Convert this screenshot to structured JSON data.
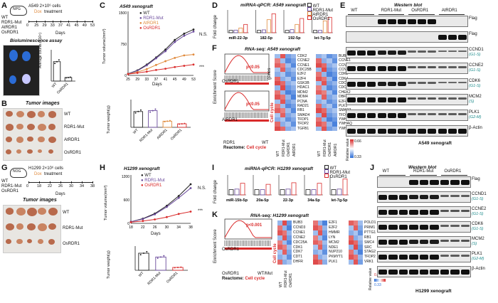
{
  "panels": {
    "A": {
      "letter": "A",
      "strain": "NPG",
      "cells": "A549 2×10⁶ cells",
      "dox": "Dox",
      "treatment": "treatment",
      "groups": [
        "WT",
        "RDR1-Mut",
        "AtRDR1",
        "OsRDR1"
      ],
      "days": [
        "0",
        "25",
        "29",
        "33",
        "37",
        "41",
        "45",
        "49",
        "53"
      ],
      "days_label": "Days",
      "bio_title": "Bioluminescence assay",
      "ylab": "Average counts (×10⁴)",
      "xlabels": [
        "WT",
        "OsRDR1"
      ],
      "sig": "*"
    },
    "B": {
      "letter": "B",
      "title": "Tumor images",
      "rows": [
        "WT",
        "RDR1-Mut",
        "AtRDR1",
        "OsRDR1"
      ]
    },
    "C": {
      "letter": "C",
      "title": "A549 xenograft",
      "ylab_top": "Tumor volume(mm³)",
      "ylab_bottom": "Tumor weight(g)",
      "xlab": "Days",
      "ns": "N.S.",
      "sig3": "***",
      "legend": [
        "WT",
        "RDR1-Mut",
        "AtRDR1",
        "OsRDR1"
      ],
      "bar_x": [
        "WT",
        "RDR1-Mut",
        "AtRDR1",
        "OsRDR1"
      ],
      "bar_sig": [
        "N.S.",
        "*",
        "***"
      ]
    },
    "D": {
      "letter": "D",
      "title": "miRNA-qPCR: A549 xenograft",
      "ylab": "Fold change",
      "mirs": [
        "miR-22-3p",
        "182-5p",
        "192-5p",
        "let-7g-5p"
      ],
      "legend": [
        "WT",
        "RDR1-Mut",
        "AtRDR1",
        "OsRDR1"
      ]
    },
    "E": {
      "letter": "E",
      "title": "Western blot",
      "cols": [
        "WT",
        "RDR1-Mut",
        "OsRDR1",
        "AtRDR1"
      ],
      "bands": [
        {
          "name": "Flag",
          "phase": ""
        },
        {
          "name": "Flag",
          "phase": ""
        },
        {
          "name": "CCND1",
          "phase": "(G1-S)"
        },
        {
          "name": "CCNE2",
          "phase": "(G1-S)"
        },
        {
          "name": "CDK6",
          "phase": "(G1-S)"
        },
        {
          "name": "MCM2",
          "phase": "(S)"
        },
        {
          "name": "PLK1",
          "phase": "(G2-M)"
        },
        {
          "name": "β-Actin",
          "phase": ""
        }
      ],
      "footer": "A549 xenograft"
    },
    "F": {
      "letter": "F",
      "title": "RNA-seq: A549 xenograft",
      "ylab": "Enrichment Score",
      "p1": "p<0.05",
      "p2": "p<0.05",
      "lbl1": "OsRDR1",
      "lbl2": "AtRDR1",
      "left": "RDR1",
      "right": "WT",
      "react": "Reactome:",
      "rtype": "Cell cycle",
      "genes": "genes",
      "cc": "Cell cycle",
      "col1": [
        "CDK2",
        "CCNE2",
        "CCNE1",
        "CDC25B",
        "E2F2",
        "E2F4",
        "GSK3B",
        "HDAC1",
        "MDM2",
        "MDM4",
        "PCNA",
        "RAD21",
        "RB1",
        "SMAD4",
        "TFDP1",
        "TFDP2",
        "TGFB1"
      ],
      "col2": [
        "BUB3",
        "CCNE1",
        "CCNE2",
        "CCNB1",
        "CDK2",
        "CDK4",
        "CDC6",
        "CDC7",
        "CHEK2",
        "DBF4",
        "E2F4",
        "PLK1",
        "SMAD2",
        "TFDP2",
        "YWHAB",
        "YWHAQ",
        "YWHAZ"
      ],
      "xl1": [
        "WT",
        "RDR1-Mut",
        "OsRDR1",
        "AtRDR1"
      ],
      "xl2": [
        "WT",
        "RDR1-Mut",
        "OsRDR1",
        "AtRDR1"
      ],
      "scale_hi": "0.66",
      "scale_lo": "0.33",
      "scale_lbl": "Relative value"
    },
    "G": {
      "letter": "G",
      "strain": "NOG",
      "cells": "H1299 2×10⁶ cells",
      "dox": "Dox",
      "treatment": "treatment",
      "groups": [
        "WT",
        "RDR1-Mut",
        "OsRDR1"
      ],
      "days": [
        "0",
        "18",
        "22",
        "26",
        "30",
        "34",
        "38"
      ],
      "days_label": "Days",
      "img_title": "Tumor images",
      "rows": [
        "WT",
        "RDR1-Mut",
        "OsRDR1"
      ]
    },
    "H": {
      "letter": "H",
      "title": "H1299 xenograft",
      "ylab_top": "Tumor volume(mm³)",
      "ylab_bottom": "Tumor weight(g)",
      "xlab": "Days",
      "ns": "N.S.",
      "sig3": "***",
      "legend": [
        "WT",
        "RDR1-Mut",
        "OsRDR1"
      ],
      "bar_x": [
        "WT",
        "RDR1-Mut",
        "OsRDR1"
      ],
      "bar_sig": [
        "N.S.",
        "***"
      ]
    },
    "I": {
      "letter": "I",
      "title": "miRNA-qPCR: H1299 xenograft",
      "ylab": "Fold change",
      "mirs": [
        "miR-15b-5p",
        "20a-5p",
        "22-3p",
        "34a-5p",
        "let-7g-5p"
      ],
      "legend": [
        "WT",
        "RDR1-Mut",
        "OsRDR1"
      ],
      "sig": "***"
    },
    "J": {
      "letter": "J",
      "title": "Western blot",
      "cols": [
        "WT",
        "RDR1-Mut",
        "OsRDR1"
      ],
      "bands": [
        {
          "name": "Flag",
          "phase": ""
        },
        {
          "name": "CCND1",
          "phase": "(G1-S)"
        },
        {
          "name": "CCNE2",
          "phase": "(G1-S)"
        },
        {
          "name": "CDK6",
          "phase": "(G1-S)"
        },
        {
          "name": "MCM2",
          "phase": "(S)"
        },
        {
          "name": "PLK1",
          "phase": "(G2-M)"
        },
        {
          "name": "β-Actin",
          "phase": ""
        }
      ],
      "footer": "H1299 xenograft"
    },
    "K": {
      "letter": "K",
      "title": "RNA-seq: H1299 xenograft",
      "ylab": "Enrichment Score",
      "p": "p<0.001",
      "lbl": "OsRDR1",
      "left": "OsRDR1",
      "right": "WT/Mut",
      "react": "Reactome:",
      "rtype": "Cell cycle",
      "cc": "Cell cycle",
      "col1": [
        "BUB3",
        "CCND3",
        "CCNE1",
        "CCNE2",
        "CDC25A",
        "CDK1",
        "CDK7",
        "CDT1",
        "DHFR"
      ],
      "col2": [
        "E2F1",
        "E2F2",
        "HMMR",
        "LYN",
        "MCM2",
        "NDE1",
        "NUP210",
        "PKMYT1",
        "PLK1"
      ],
      "col3": [
        "POLD1",
        "PRIM1",
        "PTTG1",
        "RB1",
        "SMC4",
        "SRC",
        "STAG2",
        "TFDP2",
        "VRK1"
      ],
      "xl": [
        "WT",
        "RDR1-Mut",
        "OsRDR1"
      ],
      "scale_hi": "0.66",
      "scale_lo": "0.33",
      "scale_lbl": "Relative value"
    }
  },
  "chart_data": [
    {
      "type": "line",
      "panel": "C",
      "title": "A549 xenograft",
      "xlabel": "Days",
      "ylabel": "Tumor volume(mm³)",
      "x": [
        25,
        29,
        33,
        37,
        41,
        45,
        49,
        53
      ],
      "ylim": [
        0,
        1500
      ],
      "series": [
        {
          "name": "WT",
          "color": "#222222",
          "values": [
            40,
            120,
            260,
            430,
            620,
            850,
            1000,
            1100
          ]
        },
        {
          "name": "RDR1-Mut",
          "color": "#6a4a9c",
          "values": [
            40,
            110,
            240,
            410,
            580,
            800,
            950,
            1050
          ]
        },
        {
          "name": "AtRDR1",
          "color": "#e08a3c",
          "values": [
            35,
            80,
            150,
            250,
            340,
            420,
            480,
            500
          ]
        },
        {
          "name": "OsRDR1",
          "color": "#d92b2b",
          "values": [
            30,
            60,
            90,
            130,
            160,
            200,
            230,
            260
          ]
        }
      ]
    },
    {
      "type": "bar",
      "panel": "C",
      "xlabel": "",
      "ylabel": "Tumor weight(g)",
      "categories": [
        "WT",
        "RDR1-Mut",
        "AtRDR1",
        "OsRDR1"
      ],
      "values": [
        0.9,
        0.95,
        0.35,
        0.2
      ],
      "colors": [
        "#222222",
        "#6a4a9c",
        "#e08a3c",
        "#d92b2b"
      ]
    },
    {
      "type": "bar",
      "panel": "A",
      "ylabel": "Average counts (×10⁴)",
      "categories": [
        "WT",
        "OsRDR1"
      ],
      "values": [
        6.5,
        1.2
      ]
    },
    {
      "type": "line",
      "panel": "H",
      "title": "H1299 xenograft",
      "xlabel": "Days",
      "ylabel": "Tumor volume(mm³)",
      "x": [
        18,
        22,
        26,
        30,
        34,
        38
      ],
      "ylim": [
        0,
        1200
      ],
      "series": [
        {
          "name": "WT",
          "color": "#222222",
          "values": [
            40,
            120,
            250,
            450,
            700,
            1000
          ]
        },
        {
          "name": "RDR1-Mut",
          "color": "#6a4a9c",
          "values": [
            40,
            110,
            230,
            420,
            650,
            900
          ]
        },
        {
          "name": "OsRDR1",
          "color": "#d92b2b",
          "values": [
            30,
            60,
            100,
            160,
            240,
            300
          ]
        }
      ]
    },
    {
      "type": "bar",
      "panel": "H",
      "ylabel": "Tumor weight(g)",
      "categories": [
        "WT",
        "RDR1-Mut",
        "OsRDR1"
      ],
      "values": [
        0.9,
        0.7,
        0.15
      ],
      "colors": [
        "#222222",
        "#6a4a9c",
        "#d92b2b"
      ]
    },
    {
      "type": "bar",
      "panel": "D",
      "title": "miRNA-qPCR: A549 xenograft",
      "ylabel": "Fold change",
      "categories": [
        "miR-22-3p",
        "182-5p",
        "192-5p",
        "let-7g-5p"
      ],
      "series": [
        {
          "name": "WT",
          "values": [
            1,
            1,
            1,
            1
          ]
        },
        {
          "name": "RDR1-Mut",
          "values": [
            1.1,
            1.2,
            1.3,
            1.0
          ]
        },
        {
          "name": "AtRDR1",
          "values": [
            2.0,
            5.5,
            3.5,
            5.0
          ]
        },
        {
          "name": "OsRDR1",
          "values": [
            3.5,
            8.0,
            6.0,
            6.5
          ]
        }
      ]
    },
    {
      "type": "bar",
      "panel": "I",
      "title": "miRNA-qPCR: H1299 xenograft",
      "ylabel": "Fold change",
      "categories": [
        "miR-15b-5p",
        "20a-5p",
        "22-3p",
        "34a-5p",
        "let-7g-5p"
      ],
      "series": [
        {
          "name": "WT",
          "values": [
            1,
            1,
            1,
            1,
            1
          ]
        },
        {
          "name": "RDR1-Mut",
          "values": [
            1.1,
            1.0,
            1.1,
            1.0,
            1.1
          ]
        },
        {
          "name": "OsRDR1",
          "values": [
            2.2,
            2.0,
            2.3,
            2.2,
            3.0
          ]
        }
      ]
    }
  ]
}
